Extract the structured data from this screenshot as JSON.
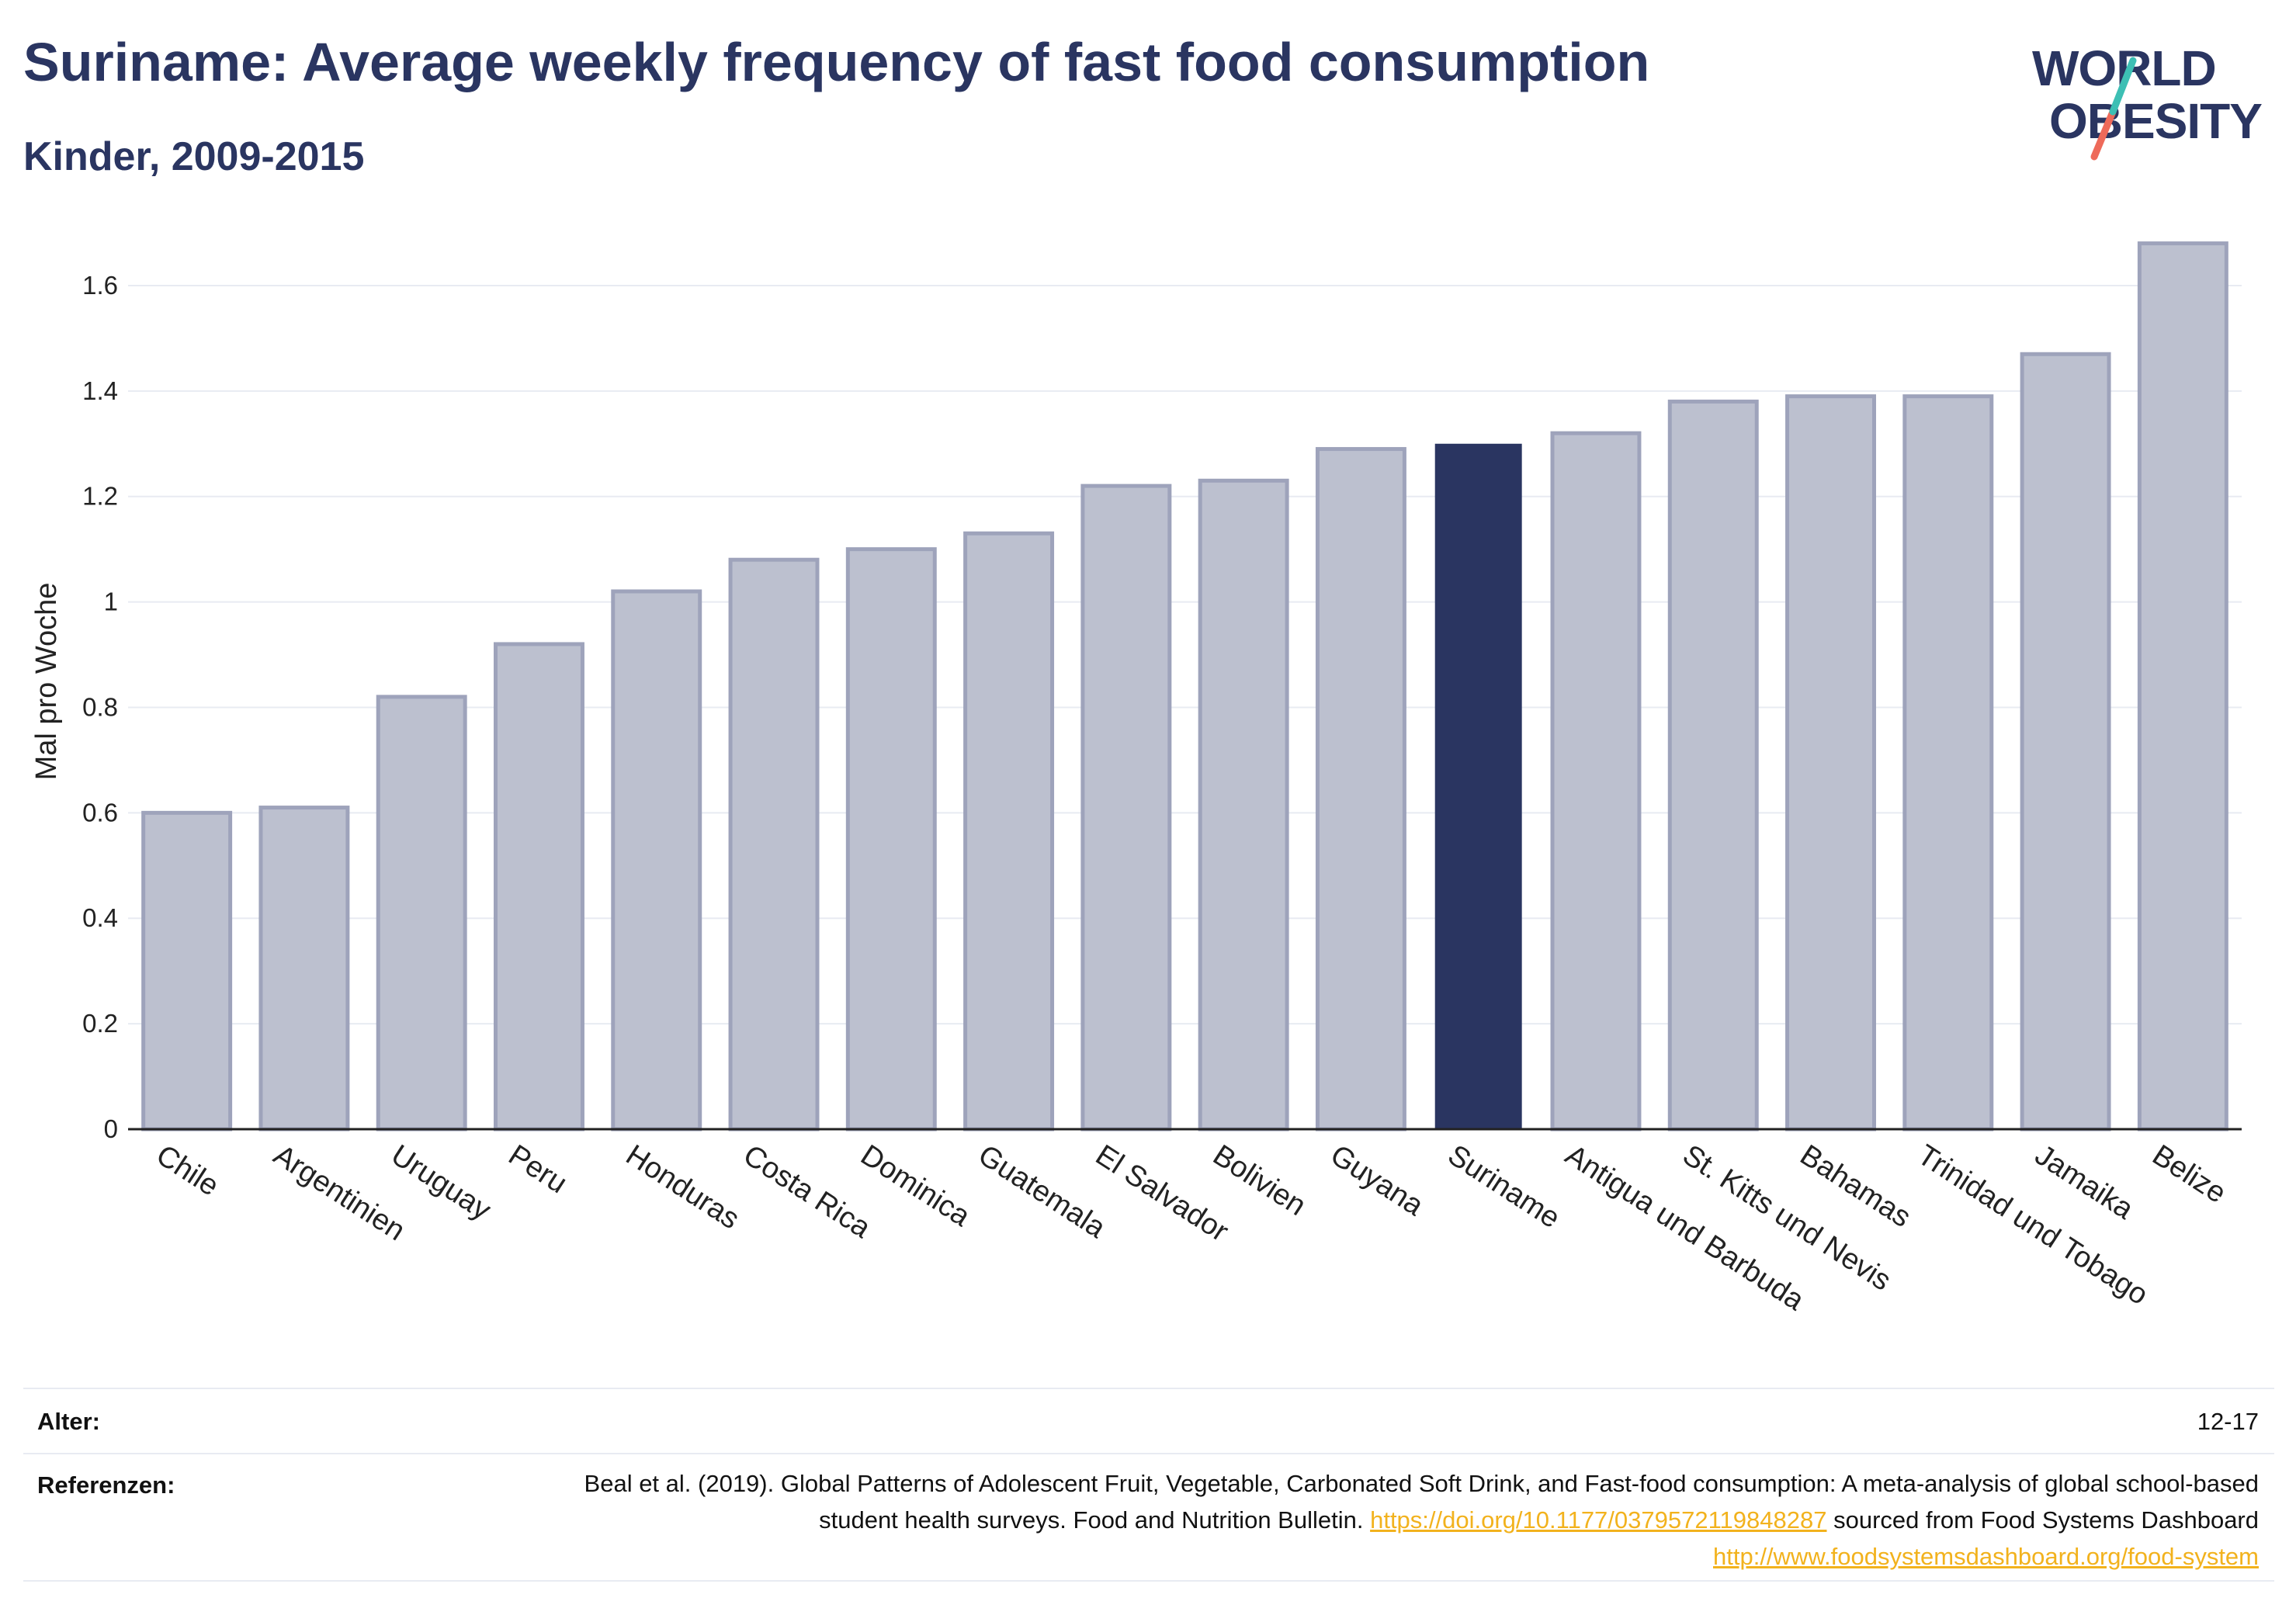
{
  "header": {
    "title": "Suriname: Average weekly frequency of fast food consumption",
    "subtitle": "Kinder, 2009-2015"
  },
  "logo": {
    "line1": "WORLD",
    "line2": "OBESITY"
  },
  "colors": {
    "highlight": "#2a3561",
    "bar_fill": "#bcc0cf",
    "bar_stroke": "#9ea3bb",
    "grid": "#e8ebf2",
    "link": "#f2b21d",
    "logo_teal": "#3dbfb4",
    "logo_coral": "#ee6a5a"
  },
  "chart_data": {
    "type": "bar",
    "title": "Suriname: Average weekly frequency of fast food consumption",
    "subtitle": "Kinder, 2009-2015",
    "xlabel": "",
    "ylabel": "Mal pro Woche",
    "ylim": [
      0,
      1.7
    ],
    "yticks": [
      0,
      0.2,
      0.4,
      0.6,
      0.8,
      1,
      1.2,
      1.4,
      1.6
    ],
    "ytick_labels": [
      "0",
      "0.2",
      "0.4",
      "0.6",
      "0.8",
      "1",
      "1.2",
      "1.4",
      "1.6"
    ],
    "grid": true,
    "highlight": "Suriname",
    "categories": [
      "Chile",
      "Argentinien",
      "Uruguay",
      "Peru",
      "Honduras",
      "Costa Rica",
      "Dominica",
      "Guatemala",
      "El Salvador",
      "Bolivien",
      "Guyana",
      "Suriname",
      "Antigua und Barbuda",
      "St. Kitts und Nevis",
      "Bahamas",
      "Trinidad und Tobago",
      "Jamaika",
      "Belize"
    ],
    "values": [
      0.6,
      0.61,
      0.82,
      0.92,
      1.02,
      1.08,
      1.1,
      1.13,
      1.22,
      1.23,
      1.29,
      1.3,
      1.32,
      1.38,
      1.39,
      1.39,
      1.47,
      1.68
    ]
  },
  "footer": {
    "age_label": "Alter:",
    "age_value": "12-17",
    "ref_label": "Referenzen:",
    "ref_text_1": "Beal et al. (2019). Global Patterns of Adolescent Fruit, Vegetable, Carbonated Soft Drink, and Fast-food consumption: A meta-analysis of global school-based student health surveys. Food and Nutrition Bulletin.",
    "ref_link_1": "https://doi.org/10.1177/0379572119848287",
    "ref_text_2": "sourced from Food Systems Dashboard",
    "ref_link_2": "http://www.foodsystemsdashboard.org/food-system"
  }
}
